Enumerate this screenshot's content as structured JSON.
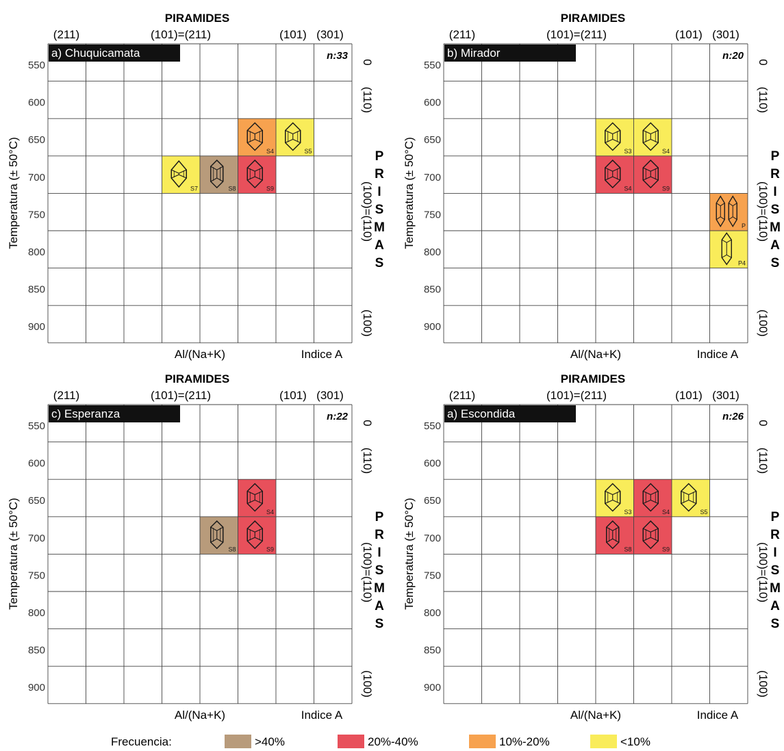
{
  "figure": {
    "legend_title": "Frecuencia:",
    "legend": [
      {
        "label": ">40%",
        "color": "#b89b7b",
        "level": "gt40"
      },
      {
        "label": "20%-40%",
        "color": "#e8505b",
        "level": "20-40"
      },
      {
        "label": "10%-20%",
        "color": "#f7a24f",
        "level": "10-20"
      },
      {
        "label": "<10%",
        "color": "#f9ec5a",
        "level": "lt10"
      }
    ]
  },
  "chart_data": [
    {
      "type": "heatmap",
      "title": "PIRAMIDES",
      "panel_label": "a) Chuquicamata",
      "n_label": "n:33",
      "ylabel": "Temperatura (± 50°C)",
      "y_ticks": [
        "550",
        "600",
        "650",
        "700",
        "750",
        "800",
        "850",
        "900"
      ],
      "ylim": [
        550,
        900
      ],
      "top_labels": [
        "(211)",
        "(101)=(211)",
        "(101)",
        "(301)"
      ],
      "bottom_labels": [
        "Al/(Na+K)",
        "Indice A"
      ],
      "right_labels": [
        "0",
        "(110)",
        "(100)=(110)",
        "(100)"
      ],
      "side_title": [
        "P",
        "R",
        "I",
        "S",
        "M",
        "A",
        "S"
      ],
      "columns": 8,
      "cells": [
        {
          "col": 5,
          "row": 2,
          "level": "10-20",
          "label": "S4",
          "crystal": "pyramid-hex"
        },
        {
          "col": 6,
          "row": 2,
          "level": "lt10",
          "label": "S5",
          "crystal": "pyramid-hex"
        },
        {
          "col": 3,
          "row": 3,
          "level": "lt10",
          "label": "S7",
          "crystal": "prism-round"
        },
        {
          "col": 4,
          "row": 3,
          "level": "gt40",
          "label": "S8",
          "crystal": "prism-elongated"
        },
        {
          "col": 5,
          "row": 3,
          "level": "20-40",
          "label": "S9",
          "crystal": "pyramid-hex"
        }
      ]
    },
    {
      "type": "heatmap",
      "title": "PIRAMIDES",
      "panel_label": "b) Mirador",
      "n_label": "n:20",
      "ylabel": "Temperatura (± 50°C)",
      "y_ticks": [
        "550",
        "600",
        "650",
        "700",
        "750",
        "800",
        "850",
        "900"
      ],
      "ylim": [
        550,
        900
      ],
      "top_labels": [
        "(211)",
        "(101)=(211)",
        "(101)",
        "(301)"
      ],
      "bottom_labels": [
        "Al/(Na+K)",
        "Indice A"
      ],
      "right_labels": [
        "0",
        "(110)",
        "(100)=(110)",
        "(100)"
      ],
      "side_title": [
        "P",
        "R",
        "I",
        "S",
        "M",
        "A",
        "S"
      ],
      "columns": 8,
      "cells": [
        {
          "col": 4,
          "row": 2,
          "level": "lt10",
          "label": "S3",
          "crystal": "pyramid-hex"
        },
        {
          "col": 5,
          "row": 2,
          "level": "lt10",
          "label": "S4",
          "crystal": "pyramid-hex"
        },
        {
          "col": 4,
          "row": 3,
          "level": "20-40",
          "label": "S4",
          "crystal": "pyramid-hex"
        },
        {
          "col": 5,
          "row": 3,
          "level": "20-40",
          "label": "S9",
          "crystal": "pyramid-hex"
        },
        {
          "col": 7,
          "row": 4,
          "level": "10-20",
          "label": "P",
          "crystal": "prism-pair"
        },
        {
          "col": 7,
          "row": 5,
          "level": "lt10",
          "label": "P4",
          "crystal": "prism-long"
        }
      ]
    },
    {
      "type": "heatmap",
      "title": "PIRAMIDES",
      "panel_label": "c) Esperanza",
      "n_label": "n:22",
      "ylabel": "Temperatura (± 50°C)",
      "y_ticks": [
        "550",
        "600",
        "650",
        "700",
        "750",
        "800",
        "850",
        "900"
      ],
      "ylim": [
        550,
        900
      ],
      "top_labels": [
        "(211)",
        "(101)=(211)",
        "(101)",
        "(301)"
      ],
      "bottom_labels": [
        "Al/(Na+K)",
        "Indice A"
      ],
      "right_labels": [
        "0",
        "(110)",
        "(100)=(110)",
        "(100)"
      ],
      "side_title": [
        "P",
        "R",
        "I",
        "S",
        "M",
        "A",
        "S"
      ],
      "columns": 8,
      "cells": [
        {
          "col": 5,
          "row": 2,
          "level": "20-40",
          "label": "S4",
          "crystal": "pyramid-hex"
        },
        {
          "col": 4,
          "row": 3,
          "level": "gt40",
          "label": "S8",
          "crystal": "prism-elongated"
        },
        {
          "col": 5,
          "row": 3,
          "level": "20-40",
          "label": "S9",
          "crystal": "pyramid-hex"
        }
      ]
    },
    {
      "type": "heatmap",
      "title": "PIRAMIDES",
      "panel_label": "a) Escondida",
      "n_label": "n:26",
      "ylabel": "Temperatura (± 50°C)",
      "y_ticks": [
        "550",
        "600",
        "650",
        "700",
        "750",
        "800",
        "850",
        "900"
      ],
      "ylim": [
        550,
        900
      ],
      "top_labels": [
        "(211)",
        "(101)=(211)",
        "(101)",
        "(301)"
      ],
      "bottom_labels": [
        "Al/(Na+K)",
        "Indice A"
      ],
      "right_labels": [
        "0",
        "(110)",
        "(100)=(110)",
        "(100)"
      ],
      "side_title": [
        "P",
        "R",
        "I",
        "S",
        "M",
        "A",
        "S"
      ],
      "columns": 8,
      "cells": [
        {
          "col": 4,
          "row": 2,
          "level": "lt10",
          "label": "S3",
          "crystal": "pyramid-hex"
        },
        {
          "col": 5,
          "row": 2,
          "level": "20-40",
          "label": "S4",
          "crystal": "pyramid-hex"
        },
        {
          "col": 6,
          "row": 2,
          "level": "lt10",
          "label": "S5",
          "crystal": "pyramid-hex"
        },
        {
          "col": 4,
          "row": 3,
          "level": "20-40",
          "label": "S8",
          "crystal": "prism-elongated"
        },
        {
          "col": 5,
          "row": 3,
          "level": "20-40",
          "label": "S9",
          "crystal": "pyramid-hex"
        }
      ]
    }
  ]
}
